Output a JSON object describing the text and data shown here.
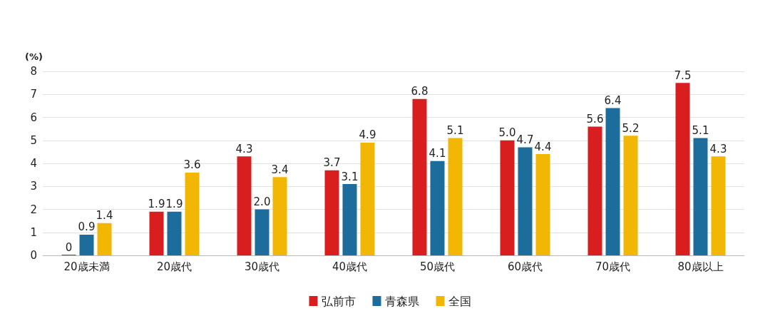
{
  "chart_data": {
    "type": "bar",
    "ylabel": "(%)",
    "categories": [
      "20歳未満",
      "20歳代",
      "30歳代",
      "40歳代",
      "50歳代",
      "60歳代",
      "70歳代",
      "80歳以上"
    ],
    "series": [
      {
        "name": "弘前市",
        "color": "#d81e1e",
        "values": [
          0,
          1.9,
          4.3,
          3.7,
          6.8,
          5.0,
          5.6,
          7.5
        ],
        "value_labels": [
          "0",
          "1.9",
          "4.3",
          "3.7",
          "6.8",
          "5.0",
          "5.6",
          "7.5"
        ]
      },
      {
        "name": "青森県",
        "color": "#1c6c9c",
        "values": [
          0.9,
          1.9,
          2.0,
          3.1,
          4.1,
          4.7,
          6.4,
          5.1
        ],
        "value_labels": [
          "0.9",
          "1.9",
          "2.0",
          "3.1",
          "4.1",
          "4.7",
          "6.4",
          "5.1"
        ]
      },
      {
        "name": "全国",
        "color": "#f2b705",
        "values": [
          1.4,
          3.6,
          3.4,
          4.9,
          5.1,
          4.4,
          5.2,
          4.3
        ],
        "value_labels": [
          "1.4",
          "3.6",
          "3.4",
          "4.9",
          "5.1",
          "4.4",
          "5.2",
          "4.3"
        ]
      }
    ],
    "ylim": [
      0,
      8
    ],
    "yticks": [
      0,
      1,
      2,
      3,
      4,
      5,
      6,
      7,
      8
    ],
    "grid": "y",
    "legend": "bottom"
  }
}
